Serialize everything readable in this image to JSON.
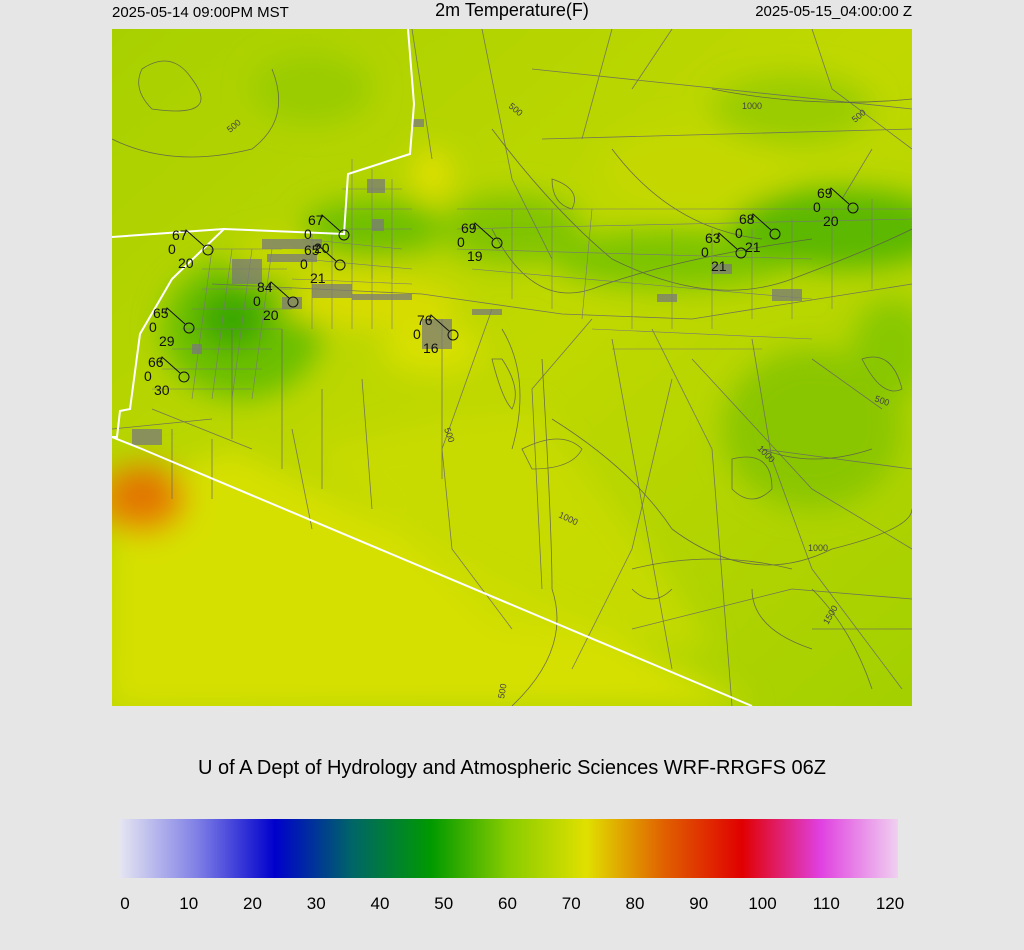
{
  "header": {
    "valid_local": "2025-05-14 09:00PM MST",
    "title": "2m Temperature(F)",
    "valid_utc": "2025-05-15_04:00:00 Z"
  },
  "credit": "U of A Dept of Hydrology and Atmospheric Sciences WRF-RRGFS 06Z",
  "colorbar": {
    "ticks": [
      "0",
      "10",
      "20",
      "30",
      "40",
      "50",
      "60",
      "70",
      "80",
      "90",
      "100",
      "110",
      "120"
    ],
    "range": [
      0,
      120
    ],
    "stops": [
      "#e6e6f2",
      "#8080e6",
      "#0000cc",
      "#006666",
      "#009900",
      "#88cc00",
      "#e0e000",
      "#e06000",
      "#e00000",
      "#e040e0",
      "#f0d0f0"
    ]
  },
  "contour_labels": [
    "500",
    "1000",
    "500",
    "500",
    "500",
    "1000",
    "1000",
    "1000",
    "1500",
    "500"
  ],
  "stations": [
    {
      "temp": "67",
      "dew": "20",
      "gust": "0"
    },
    {
      "temp": "67",
      "dew": "20",
      "gust": "0"
    },
    {
      "temp": "65",
      "dew": "21",
      "gust": "0"
    },
    {
      "temp": "84",
      "dew": "20",
      "gust": "0"
    },
    {
      "temp": "65",
      "dew": "29",
      "gust": "0"
    },
    {
      "temp": "66",
      "dew": "30",
      "gust": "0"
    },
    {
      "temp": "69",
      "dew": "19",
      "gust": "0"
    },
    {
      "temp": "76",
      "dew": "16",
      "gust": "0"
    },
    {
      "temp": "63",
      "dew": "21",
      "gust": "0"
    },
    {
      "temp": "68",
      "dew": "21",
      "gust": "0"
    },
    {
      "temp": "69",
      "dew": "20",
      "gust": "0"
    }
  ]
}
